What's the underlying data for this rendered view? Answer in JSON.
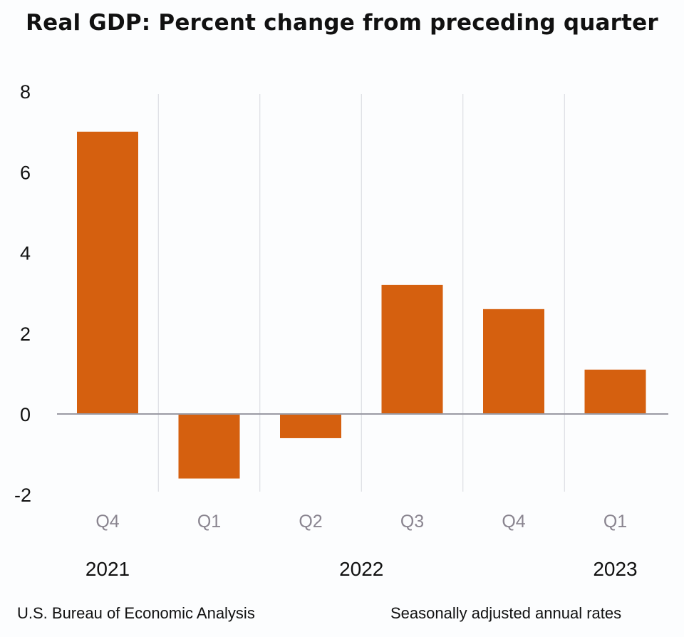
{
  "chart_data": {
    "type": "bar",
    "title": "Real GDP:  Percent change from preceding quarter",
    "categories": [
      "Q4",
      "Q1",
      "Q2",
      "Q3",
      "Q4",
      "Q1"
    ],
    "years": [
      {
        "label": "2021",
        "under_index": 0
      },
      {
        "label": "2022",
        "under_index": 2.5
      },
      {
        "label": "2023",
        "under_index": 5
      }
    ],
    "values": [
      7.0,
      -1.6,
      -0.6,
      3.2,
      2.6,
      1.1
    ],
    "yticks": [
      8,
      6,
      4,
      2,
      0,
      -2
    ],
    "ylim": [
      -2,
      8
    ],
    "xlabel": "",
    "ylabel": "",
    "grid": "vertical separators between quarters",
    "bar_color": "#d5600f",
    "source": "U.S. Bureau of Economic Analysis",
    "note": "Seasonally adjusted annual rates"
  }
}
